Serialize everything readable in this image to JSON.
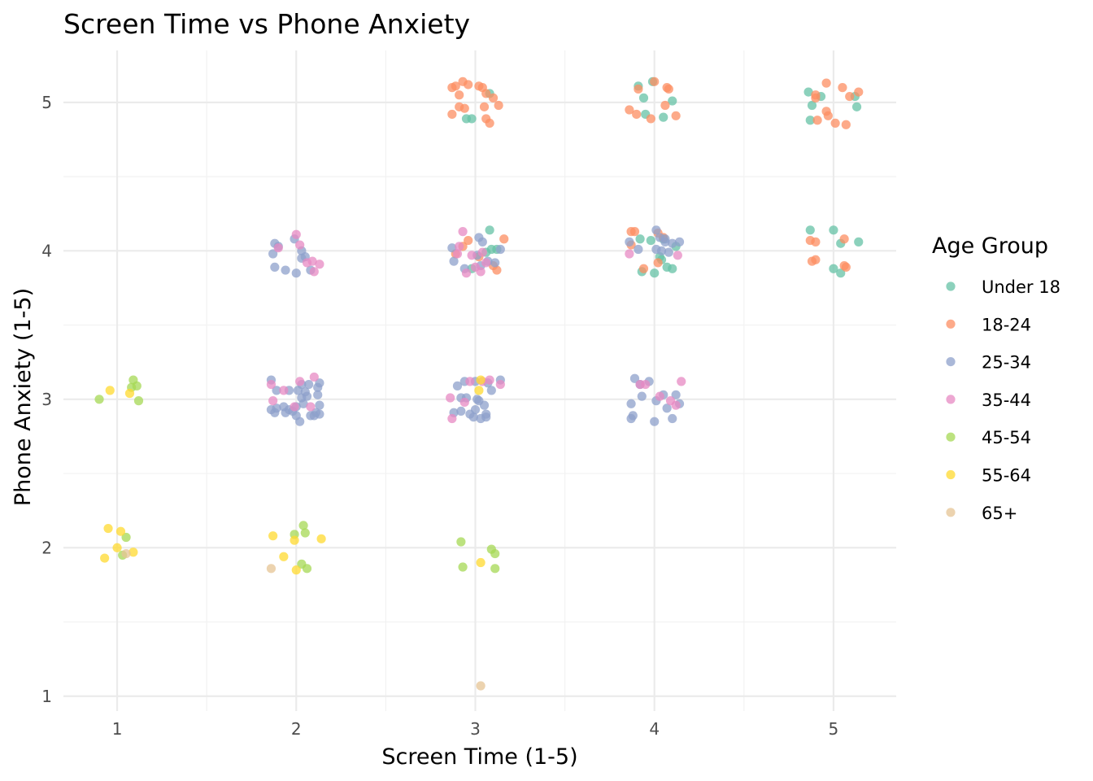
{
  "chart_data": {
    "type": "scatter",
    "title": "Screen Time vs Phone Anxiety",
    "xlabel": "Screen Time (1-5)",
    "ylabel": "Phone Anxiety (1-5)",
    "xlim": [
      0.7,
      5.35
    ],
    "ylim": [
      0.9,
      5.35
    ],
    "xticks": [
      1,
      2,
      3,
      4,
      5
    ],
    "yticks": [
      1,
      2,
      3,
      4,
      5
    ],
    "grid": true,
    "jitter": true,
    "legend_title": "Age Group",
    "legend_position": "right",
    "series": [
      {
        "name": "Under 18",
        "color": "#66C2A5",
        "points": [
          [
            3.08,
            5.06
          ],
          [
            2.95,
            4.89
          ],
          [
            2.98,
            4.89
          ],
          [
            3.08,
            4.14
          ],
          [
            3.09,
            4.01
          ],
          [
            3.12,
            4.01
          ],
          [
            3.06,
            3.99
          ],
          [
            2.98,
            3.88
          ],
          [
            3.91,
            5.11
          ],
          [
            3.94,
            5.03
          ],
          [
            3.99,
            5.14
          ],
          [
            3.95,
            4.92
          ],
          [
            4.05,
            4.9
          ],
          [
            4.1,
            5.01
          ],
          [
            3.92,
            4.08
          ],
          [
            3.98,
            4.07
          ],
          [
            4.05,
            4.08
          ],
          [
            4.12,
            4.03
          ],
          [
            4.03,
            3.96
          ],
          [
            4.07,
            3.89
          ],
          [
            3.93,
            3.86
          ],
          [
            4.0,
            3.85
          ],
          [
            4.04,
            3.94
          ],
          [
            4.1,
            3.88
          ],
          [
            4.86,
            5.07
          ],
          [
            4.88,
            4.98
          ],
          [
            4.93,
            5.04
          ],
          [
            4.87,
            4.88
          ],
          [
            5.12,
            5.04
          ],
          [
            5.13,
            4.97
          ],
          [
            4.87,
            4.14
          ],
          [
            5.0,
            4.14
          ],
          [
            5.04,
            4.05
          ],
          [
            5.14,
            4.06
          ],
          [
            5.0,
            3.88
          ],
          [
            5.04,
            3.85
          ]
        ]
      },
      {
        "name": "18-24",
        "color": "#FC8D62",
        "points": [
          [
            2.87,
            5.1
          ],
          [
            2.89,
            5.11
          ],
          [
            2.93,
            5.14
          ],
          [
            2.96,
            5.12
          ],
          [
            3.02,
            5.11
          ],
          [
            3.04,
            5.1
          ],
          [
            2.91,
            5.05
          ],
          [
            3.06,
            5.06
          ],
          [
            3.1,
            5.03
          ],
          [
            2.91,
            4.97
          ],
          [
            2.94,
            4.96
          ],
          [
            3.05,
            4.97
          ],
          [
            3.13,
            4.98
          ],
          [
            2.87,
            4.92
          ],
          [
            3.06,
            4.89
          ],
          [
            3.08,
            4.86
          ],
          [
            2.96,
            4.07
          ],
          [
            3.16,
            4.08
          ],
          [
            2.93,
            4.03
          ],
          [
            2.89,
            3.98
          ],
          [
            3.02,
            3.96
          ],
          [
            3.1,
            3.9
          ],
          [
            3.12,
            3.87
          ],
          [
            4.0,
            5.14
          ],
          [
            4.08,
            5.09
          ],
          [
            4.07,
            5.1
          ],
          [
            3.91,
            5.09
          ],
          [
            4.06,
            4.98
          ],
          [
            3.86,
            4.95
          ],
          [
            3.9,
            4.92
          ],
          [
            3.98,
            4.89
          ],
          [
            4.12,
            4.91
          ],
          [
            3.87,
            4.13
          ],
          [
            3.89,
            4.13
          ],
          [
            4.02,
            4.12
          ],
          [
            3.87,
            4.04
          ],
          [
            4.05,
            4.09
          ],
          [
            4.02,
            3.92
          ],
          [
            3.94,
            3.88
          ],
          [
            4.96,
            5.13
          ],
          [
            5.05,
            5.1
          ],
          [
            5.14,
            5.07
          ],
          [
            4.9,
            5.05
          ],
          [
            4.9,
            5.03
          ],
          [
            5.09,
            5.04
          ],
          [
            4.96,
            4.94
          ],
          [
            4.97,
            4.91
          ],
          [
            4.91,
            4.88
          ],
          [
            5.01,
            4.86
          ],
          [
            5.07,
            4.85
          ],
          [
            4.87,
            4.07
          ],
          [
            4.9,
            4.06
          ],
          [
            5.06,
            4.08
          ],
          [
            4.88,
            3.93
          ],
          [
            4.9,
            3.94
          ],
          [
            5.06,
            3.9
          ],
          [
            5.07,
            3.89
          ]
        ]
      },
      {
        "name": "25-34",
        "color": "#8DA0CB",
        "points": [
          [
            1.99,
            4.08
          ],
          [
            1.88,
            4.05
          ],
          [
            1.9,
            4.03
          ],
          [
            1.87,
            3.98
          ],
          [
            2.03,
            4.0
          ],
          [
            2.03,
            3.95
          ],
          [
            2.05,
            3.96
          ],
          [
            1.88,
            3.89
          ],
          [
            1.94,
            3.87
          ],
          [
            2.0,
            3.85
          ],
          [
            2.08,
            3.87
          ],
          [
            1.86,
            3.13
          ],
          [
            2.03,
            3.1
          ],
          [
            2.07,
            3.1
          ],
          [
            2.13,
            3.11
          ],
          [
            2.12,
            3.08
          ],
          [
            1.96,
            3.06
          ],
          [
            1.89,
            3.06
          ],
          [
            2.01,
            3.06
          ],
          [
            2.05,
            3.05
          ],
          [
            2.03,
            3.01
          ],
          [
            2.12,
            3.03
          ],
          [
            2.06,
            3.02
          ],
          [
            2.13,
            2.96
          ],
          [
            2.04,
            2.97
          ],
          [
            2.0,
            2.95
          ],
          [
            1.93,
            2.95
          ],
          [
            1.89,
            2.94
          ],
          [
            1.86,
            2.93
          ],
          [
            1.96,
            2.93
          ],
          [
            1.98,
            2.92
          ],
          [
            2.11,
            2.91
          ],
          [
            2.13,
            2.9
          ],
          [
            1.94,
            2.91
          ],
          [
            1.88,
            2.91
          ],
          [
            2.0,
            2.89
          ],
          [
            2.08,
            2.89
          ],
          [
            2.1,
            2.89
          ],
          [
            2.02,
            2.85
          ],
          [
            3.02,
            4.09
          ],
          [
            2.87,
            4.02
          ],
          [
            3.01,
            3.97
          ],
          [
            3.04,
            4.06
          ],
          [
            3.14,
            4.01
          ],
          [
            2.88,
            3.93
          ],
          [
            3.07,
            3.93
          ],
          [
            3.11,
            3.92
          ],
          [
            2.94,
            3.88
          ],
          [
            3.03,
            3.9
          ],
          [
            2.94,
            3.12
          ],
          [
            3.0,
            3.12
          ],
          [
            3.14,
            3.13
          ],
          [
            2.9,
            3.09
          ],
          [
            3.07,
            3.11
          ],
          [
            3.09,
            3.06
          ],
          [
            3.01,
            3.0
          ],
          [
            2.92,
            3.01
          ],
          [
            2.95,
            3.01
          ],
          [
            3.02,
            2.99
          ],
          [
            3.05,
            2.96
          ],
          [
            3.0,
            2.93
          ],
          [
            2.88,
            2.91
          ],
          [
            2.92,
            2.92
          ],
          [
            2.97,
            2.9
          ],
          [
            3.06,
            2.9
          ],
          [
            2.99,
            2.88
          ],
          [
            3.06,
            2.88
          ],
          [
            3.03,
            2.87
          ],
          [
            4.01,
            4.14
          ],
          [
            4.03,
            4.09
          ],
          [
            4.1,
            4.05
          ],
          [
            4.14,
            4.06
          ],
          [
            3.86,
            4.06
          ],
          [
            4.06,
            4.08
          ],
          [
            4.06,
            4.06
          ],
          [
            3.91,
            4.01
          ],
          [
            4.01,
            4.01
          ],
          [
            4.04,
            4.0
          ],
          [
            4.08,
            3.99
          ],
          [
            3.89,
            3.14
          ],
          [
            3.97,
            3.12
          ],
          [
            3.92,
            3.1
          ],
          [
            4.05,
            3.03
          ],
          [
            3.93,
            3.02
          ],
          [
            4.12,
            3.03
          ],
          [
            3.87,
            2.97
          ],
          [
            4.01,
            2.99
          ],
          [
            4.14,
            2.97
          ],
          [
            4.07,
            2.94
          ],
          [
            3.88,
            2.89
          ],
          [
            3.87,
            2.87
          ],
          [
            4.1,
            2.87
          ],
          [
            4.0,
            2.85
          ]
        ]
      },
      {
        "name": "35-44",
        "color": "#E78AC3",
        "points": [
          [
            2.0,
            4.11
          ],
          [
            2.02,
            4.04
          ],
          [
            1.9,
            4.02
          ],
          [
            2.09,
            3.93
          ],
          [
            2.13,
            3.91
          ],
          [
            2.06,
            3.92
          ],
          [
            2.1,
            3.86
          ],
          [
            2.1,
            3.15
          ],
          [
            2.02,
            3.12
          ],
          [
            1.86,
            3.1
          ],
          [
            1.93,
            3.06
          ],
          [
            1.87,
            2.99
          ],
          [
            2.08,
            2.95
          ],
          [
            1.99,
            2.95
          ],
          [
            2.93,
            4.13
          ],
          [
            2.91,
            4.03
          ],
          [
            2.98,
            3.97
          ],
          [
            2.9,
            3.98
          ],
          [
            3.04,
            3.99
          ],
          [
            3.06,
            3.92
          ],
          [
            3.0,
            3.89
          ],
          [
            3.03,
            3.86
          ],
          [
            2.95,
            3.85
          ],
          [
            3.08,
            3.13
          ],
          [
            3.04,
            3.12
          ],
          [
            2.97,
            3.12
          ],
          [
            3.14,
            3.1
          ],
          [
            2.86,
            3.01
          ],
          [
            2.94,
            2.98
          ],
          [
            2.87,
            2.87
          ],
          [
            3.92,
            3.1
          ],
          [
            3.95,
            3.1
          ],
          [
            4.15,
            3.12
          ],
          [
            4.09,
            2.99
          ],
          [
            4.03,
            3.02
          ],
          [
            4.12,
            2.96
          ],
          [
            3.86,
            3.98
          ],
          [
            4.13,
            3.97
          ]
        ]
      },
      {
        "name": "45-54",
        "color": "#A6D854",
        "points": [
          [
            1.09,
            3.13
          ],
          [
            1.08,
            3.08
          ],
          [
            1.11,
            3.09
          ],
          [
            0.9,
            3.0
          ],
          [
            1.12,
            2.99
          ],
          [
            1.05,
            2.07
          ],
          [
            1.03,
            1.95
          ],
          [
            2.04,
            2.15
          ],
          [
            1.99,
            2.09
          ],
          [
            2.05,
            2.1
          ],
          [
            2.03,
            1.89
          ],
          [
            2.06,
            1.86
          ],
          [
            2.92,
            2.04
          ],
          [
            3.09,
            1.99
          ],
          [
            3.11,
            1.96
          ],
          [
            2.93,
            1.87
          ],
          [
            3.11,
            1.86
          ]
        ]
      },
      {
        "name": "55-64",
        "color": "#FFD92F",
        "points": [
          [
            0.96,
            3.06
          ],
          [
            1.07,
            3.04
          ],
          [
            0.95,
            2.13
          ],
          [
            1.02,
            2.11
          ],
          [
            1.0,
            2.0
          ],
          [
            1.09,
            1.97
          ],
          [
            0.93,
            1.93
          ],
          [
            1.87,
            2.08
          ],
          [
            1.99,
            2.05
          ],
          [
            2.14,
            2.06
          ],
          [
            1.93,
            1.94
          ],
          [
            2.0,
            1.85
          ],
          [
            3.03,
            3.13
          ],
          [
            3.02,
            3.06
          ],
          [
            3.03,
            1.9
          ]
        ]
      },
      {
        "name": "65+",
        "color": "#E5C494",
        "points": [
          [
            1.05,
            1.96
          ],
          [
            1.86,
            1.86
          ],
          [
            3.03,
            1.07
          ]
        ]
      }
    ]
  }
}
